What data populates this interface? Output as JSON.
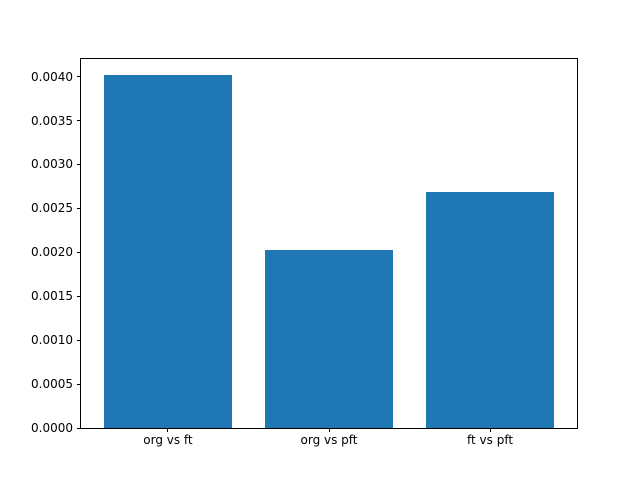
{
  "chart_data": {
    "type": "bar",
    "categories": [
      "org vs ft",
      "org vs pft",
      "ft vs pft"
    ],
    "values": [
      0.00402,
      0.00203,
      0.00269
    ],
    "title": "",
    "xlabel": "",
    "ylabel": "",
    "ylim": [
      0,
      0.0042
    ],
    "xlim": [
      -0.54,
      2.54
    ],
    "bar_width_units": 0.8,
    "yticks": [
      0.0,
      0.0005,
      0.001,
      0.0015,
      0.002,
      0.0025,
      0.003,
      0.0035,
      0.004
    ],
    "ytick_labels": [
      "0.0000",
      "0.0005",
      "0.0010",
      "0.0015",
      "0.0020",
      "0.0025",
      "0.0030",
      "0.0035",
      "0.0040"
    ],
    "bar_color": "#1f77b4",
    "axis_color": "#000000",
    "background_color": "#ffffff",
    "grid": false,
    "legend": null
  }
}
